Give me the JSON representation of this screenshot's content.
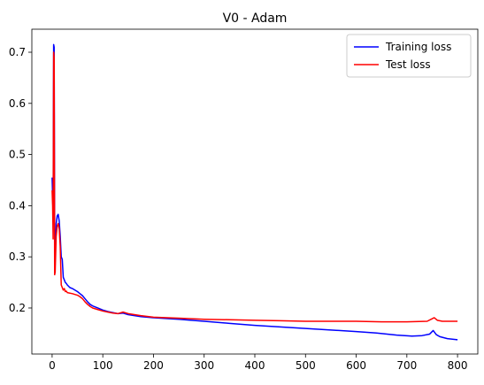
{
  "chart_data": {
    "type": "line",
    "title": "V0 - Adam",
    "xlabel": "",
    "ylabel": "",
    "xlim": [
      -40,
      840
    ],
    "ylim": [
      0.11,
      0.745
    ],
    "x_ticks": [
      0,
      100,
      200,
      300,
      400,
      500,
      600,
      700,
      800
    ],
    "y_ticks": [
      0.2,
      0.3,
      0.4,
      0.5,
      0.6,
      0.7
    ],
    "y_tick_labels": [
      "0.2",
      "0.3",
      "0.4",
      "0.5",
      "0.6",
      "0.7"
    ],
    "grid": false,
    "legend_position": "top-right",
    "series": [
      {
        "name": "Training loss",
        "color": "#0000ff",
        "points": [
          [
            0,
            0.455
          ],
          [
            1,
            0.42
          ],
          [
            2,
            0.38
          ],
          [
            3,
            0.715
          ],
          [
            4,
            0.71
          ],
          [
            5,
            0.34
          ],
          [
            6,
            0.3
          ],
          [
            8,
            0.365
          ],
          [
            10,
            0.38
          ],
          [
            12,
            0.383
          ],
          [
            14,
            0.37
          ],
          [
            16,
            0.34
          ],
          [
            18,
            0.3
          ],
          [
            20,
            0.295
          ],
          [
            22,
            0.26
          ],
          [
            24,
            0.255
          ],
          [
            26,
            0.25
          ],
          [
            28,
            0.248
          ],
          [
            30,
            0.245
          ],
          [
            35,
            0.24
          ],
          [
            40,
            0.238
          ],
          [
            45,
            0.235
          ],
          [
            50,
            0.232
          ],
          [
            55,
            0.228
          ],
          [
            60,
            0.224
          ],
          [
            65,
            0.218
          ],
          [
            70,
            0.212
          ],
          [
            75,
            0.207
          ],
          [
            80,
            0.204
          ],
          [
            90,
            0.2
          ],
          [
            100,
            0.196
          ],
          [
            110,
            0.193
          ],
          [
            120,
            0.191
          ],
          [
            130,
            0.189
          ],
          [
            140,
            0.19
          ],
          [
            150,
            0.187
          ],
          [
            175,
            0.183
          ],
          [
            200,
            0.181
          ],
          [
            250,
            0.178
          ],
          [
            300,
            0.174
          ],
          [
            350,
            0.17
          ],
          [
            400,
            0.166
          ],
          [
            450,
            0.163
          ],
          [
            500,
            0.16
          ],
          [
            550,
            0.157
          ],
          [
            600,
            0.154
          ],
          [
            640,
            0.151
          ],
          [
            680,
            0.147
          ],
          [
            710,
            0.145
          ],
          [
            730,
            0.146
          ],
          [
            745,
            0.149
          ],
          [
            752,
            0.156
          ],
          [
            758,
            0.148
          ],
          [
            765,
            0.144
          ],
          [
            780,
            0.14
          ],
          [
            800,
            0.138
          ]
        ]
      },
      {
        "name": "Test loss",
        "color": "#ff0000",
        "points": [
          [
            0,
            0.43
          ],
          [
            1,
            0.4
          ],
          [
            2,
            0.335
          ],
          [
            3,
            0.7
          ],
          [
            4,
            0.69
          ],
          [
            5,
            0.265
          ],
          [
            6,
            0.27
          ],
          [
            8,
            0.34
          ],
          [
            10,
            0.36
          ],
          [
            12,
            0.365
          ],
          [
            14,
            0.355
          ],
          [
            16,
            0.32
          ],
          [
            18,
            0.245
          ],
          [
            20,
            0.24
          ],
          [
            22,
            0.235
          ],
          [
            24,
            0.238
          ],
          [
            26,
            0.232
          ],
          [
            28,
            0.233
          ],
          [
            30,
            0.23
          ],
          [
            40,
            0.228
          ],
          [
            50,
            0.225
          ],
          [
            55,
            0.222
          ],
          [
            60,
            0.218
          ],
          [
            65,
            0.212
          ],
          [
            70,
            0.207
          ],
          [
            75,
            0.203
          ],
          [
            80,
            0.2
          ],
          [
            90,
            0.197
          ],
          [
            100,
            0.194
          ],
          [
            110,
            0.192
          ],
          [
            120,
            0.19
          ],
          [
            130,
            0.189
          ],
          [
            140,
            0.192
          ],
          [
            150,
            0.189
          ],
          [
            175,
            0.185
          ],
          [
            200,
            0.182
          ],
          [
            250,
            0.18
          ],
          [
            300,
            0.178
          ],
          [
            350,
            0.177
          ],
          [
            400,
            0.176
          ],
          [
            450,
            0.175
          ],
          [
            500,
            0.174
          ],
          [
            550,
            0.174
          ],
          [
            600,
            0.174
          ],
          [
            650,
            0.173
          ],
          [
            700,
            0.173
          ],
          [
            740,
            0.174
          ],
          [
            748,
            0.178
          ],
          [
            754,
            0.181
          ],
          [
            760,
            0.176
          ],
          [
            770,
            0.174
          ],
          [
            800,
            0.174
          ]
        ]
      }
    ]
  }
}
